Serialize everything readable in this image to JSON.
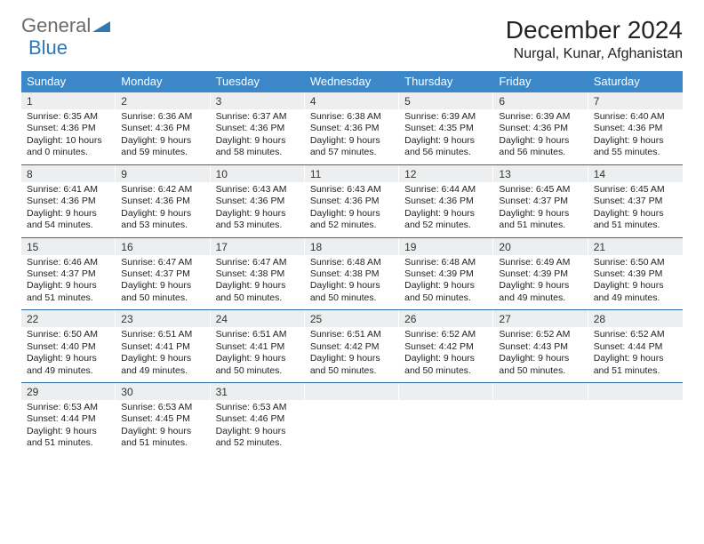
{
  "brand": {
    "name1": "General",
    "name2": "Blue",
    "color1": "#6b6b6b",
    "color2": "#2f78b5"
  },
  "title": "December 2024",
  "location": "Nurgal, Kunar, Afghanistan",
  "header_bg": "#3b87c8",
  "daynum_bg": "#eceeef",
  "week_border": "#2b6aa0",
  "dow": [
    "Sunday",
    "Monday",
    "Tuesday",
    "Wednesday",
    "Thursday",
    "Friday",
    "Saturday"
  ],
  "days": [
    {
      "n": "1",
      "sr": "6:35 AM",
      "ss": "4:36 PM",
      "dl": "10 hours and 0 minutes."
    },
    {
      "n": "2",
      "sr": "6:36 AM",
      "ss": "4:36 PM",
      "dl": "9 hours and 59 minutes."
    },
    {
      "n": "3",
      "sr": "6:37 AM",
      "ss": "4:36 PM",
      "dl": "9 hours and 58 minutes."
    },
    {
      "n": "4",
      "sr": "6:38 AM",
      "ss": "4:36 PM",
      "dl": "9 hours and 57 minutes."
    },
    {
      "n": "5",
      "sr": "6:39 AM",
      "ss": "4:35 PM",
      "dl": "9 hours and 56 minutes."
    },
    {
      "n": "6",
      "sr": "6:39 AM",
      "ss": "4:36 PM",
      "dl": "9 hours and 56 minutes."
    },
    {
      "n": "7",
      "sr": "6:40 AM",
      "ss": "4:36 PM",
      "dl": "9 hours and 55 minutes."
    },
    {
      "n": "8",
      "sr": "6:41 AM",
      "ss": "4:36 PM",
      "dl": "9 hours and 54 minutes."
    },
    {
      "n": "9",
      "sr": "6:42 AM",
      "ss": "4:36 PM",
      "dl": "9 hours and 53 minutes."
    },
    {
      "n": "10",
      "sr": "6:43 AM",
      "ss": "4:36 PM",
      "dl": "9 hours and 53 minutes."
    },
    {
      "n": "11",
      "sr": "6:43 AM",
      "ss": "4:36 PM",
      "dl": "9 hours and 52 minutes."
    },
    {
      "n": "12",
      "sr": "6:44 AM",
      "ss": "4:36 PM",
      "dl": "9 hours and 52 minutes."
    },
    {
      "n": "13",
      "sr": "6:45 AM",
      "ss": "4:37 PM",
      "dl": "9 hours and 51 minutes."
    },
    {
      "n": "14",
      "sr": "6:45 AM",
      "ss": "4:37 PM",
      "dl": "9 hours and 51 minutes."
    },
    {
      "n": "15",
      "sr": "6:46 AM",
      "ss": "4:37 PM",
      "dl": "9 hours and 51 minutes."
    },
    {
      "n": "16",
      "sr": "6:47 AM",
      "ss": "4:37 PM",
      "dl": "9 hours and 50 minutes."
    },
    {
      "n": "17",
      "sr": "6:47 AM",
      "ss": "4:38 PM",
      "dl": "9 hours and 50 minutes."
    },
    {
      "n": "18",
      "sr": "6:48 AM",
      "ss": "4:38 PM",
      "dl": "9 hours and 50 minutes."
    },
    {
      "n": "19",
      "sr": "6:48 AM",
      "ss": "4:39 PM",
      "dl": "9 hours and 50 minutes."
    },
    {
      "n": "20",
      "sr": "6:49 AM",
      "ss": "4:39 PM",
      "dl": "9 hours and 49 minutes."
    },
    {
      "n": "21",
      "sr": "6:50 AM",
      "ss": "4:39 PM",
      "dl": "9 hours and 49 minutes."
    },
    {
      "n": "22",
      "sr": "6:50 AM",
      "ss": "4:40 PM",
      "dl": "9 hours and 49 minutes."
    },
    {
      "n": "23",
      "sr": "6:51 AM",
      "ss": "4:41 PM",
      "dl": "9 hours and 49 minutes."
    },
    {
      "n": "24",
      "sr": "6:51 AM",
      "ss": "4:41 PM",
      "dl": "9 hours and 50 minutes."
    },
    {
      "n": "25",
      "sr": "6:51 AM",
      "ss": "4:42 PM",
      "dl": "9 hours and 50 minutes."
    },
    {
      "n": "26",
      "sr": "6:52 AM",
      "ss": "4:42 PM",
      "dl": "9 hours and 50 minutes."
    },
    {
      "n": "27",
      "sr": "6:52 AM",
      "ss": "4:43 PM",
      "dl": "9 hours and 50 minutes."
    },
    {
      "n": "28",
      "sr": "6:52 AM",
      "ss": "4:44 PM",
      "dl": "9 hours and 51 minutes."
    },
    {
      "n": "29",
      "sr": "6:53 AM",
      "ss": "4:44 PM",
      "dl": "9 hours and 51 minutes."
    },
    {
      "n": "30",
      "sr": "6:53 AM",
      "ss": "4:45 PM",
      "dl": "9 hours and 51 minutes."
    },
    {
      "n": "31",
      "sr": "6:53 AM",
      "ss": "4:46 PM",
      "dl": "9 hours and 52 minutes."
    }
  ],
  "labels": {
    "sunrise": "Sunrise:",
    "sunset": "Sunset:",
    "daylight": "Daylight:"
  }
}
